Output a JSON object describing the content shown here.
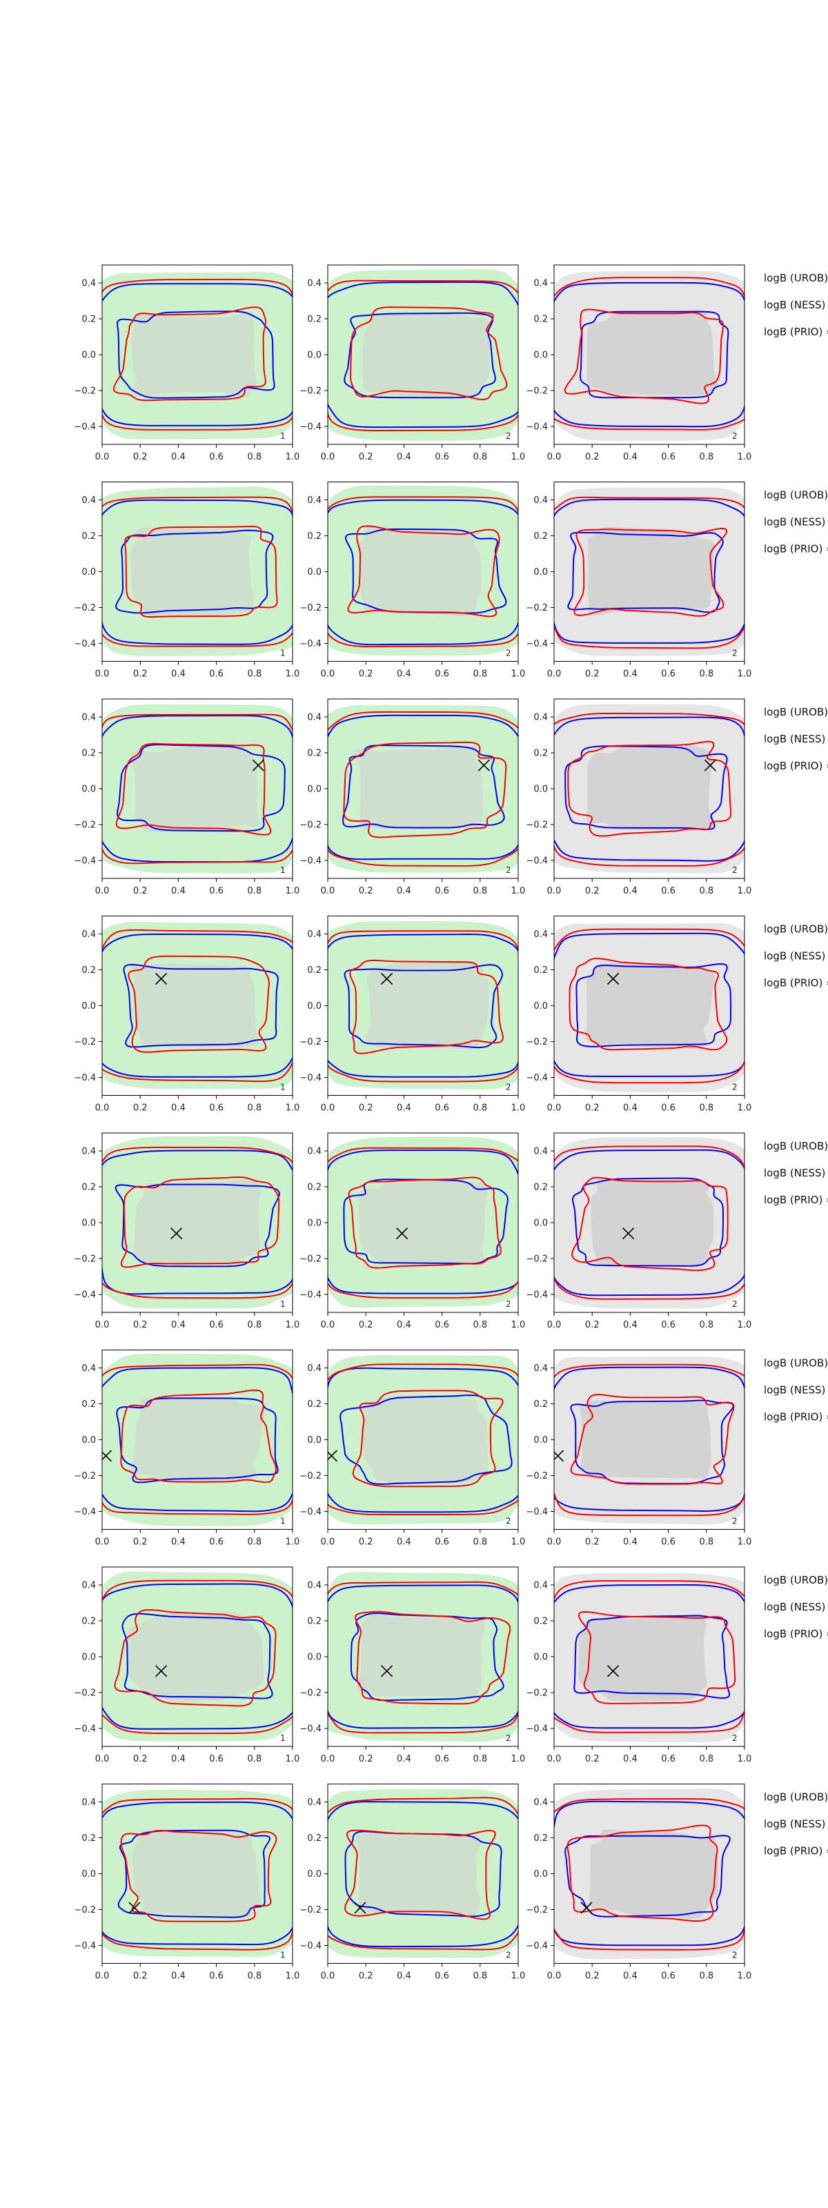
{
  "figure": {
    "colors": {
      "background": "#ffffff",
      "green_fill": "#ccf2cc",
      "grey_fill": "#e6e6e6",
      "inner_grey": "#cfcfcf",
      "blue_contour": "#0000ff",
      "red_contour": "#ff0000",
      "marker": "#000000",
      "axis": "#000000"
    },
    "stat_labels": [
      "logB (UROB) =",
      "logB (NESS) =",
      "logB (PRIO) ="
    ]
  },
  "chart_data": {
    "type": "contour",
    "grid": {
      "rows": 8,
      "cols": 3
    },
    "xlim": [
      0.0,
      1.0
    ],
    "ylim": [
      -0.5,
      0.5
    ],
    "xticks": [
      "0.0",
      "0.2",
      "0.4",
      "0.6",
      "0.8",
      "1.0"
    ],
    "yticks": [
      "0.4",
      "0.2",
      "0.0",
      "-0.2",
      "-0.4"
    ],
    "grid_lines": false,
    "panel_index_labels": [
      "1",
      "2",
      "2"
    ],
    "panel_backgrounds": [
      "green",
      "green",
      "grey"
    ],
    "markers": [
      null,
      null,
      {
        "x": 0.82,
        "y": 0.13
      },
      {
        "x": 0.31,
        "y": 0.15
      },
      {
        "x": 0.39,
        "y": -0.06
      },
      {
        "x": 0.02,
        "y": -0.09
      },
      {
        "x": 0.31,
        "y": -0.08
      },
      {
        "x": 0.17,
        "y": -0.19
      }
    ]
  }
}
